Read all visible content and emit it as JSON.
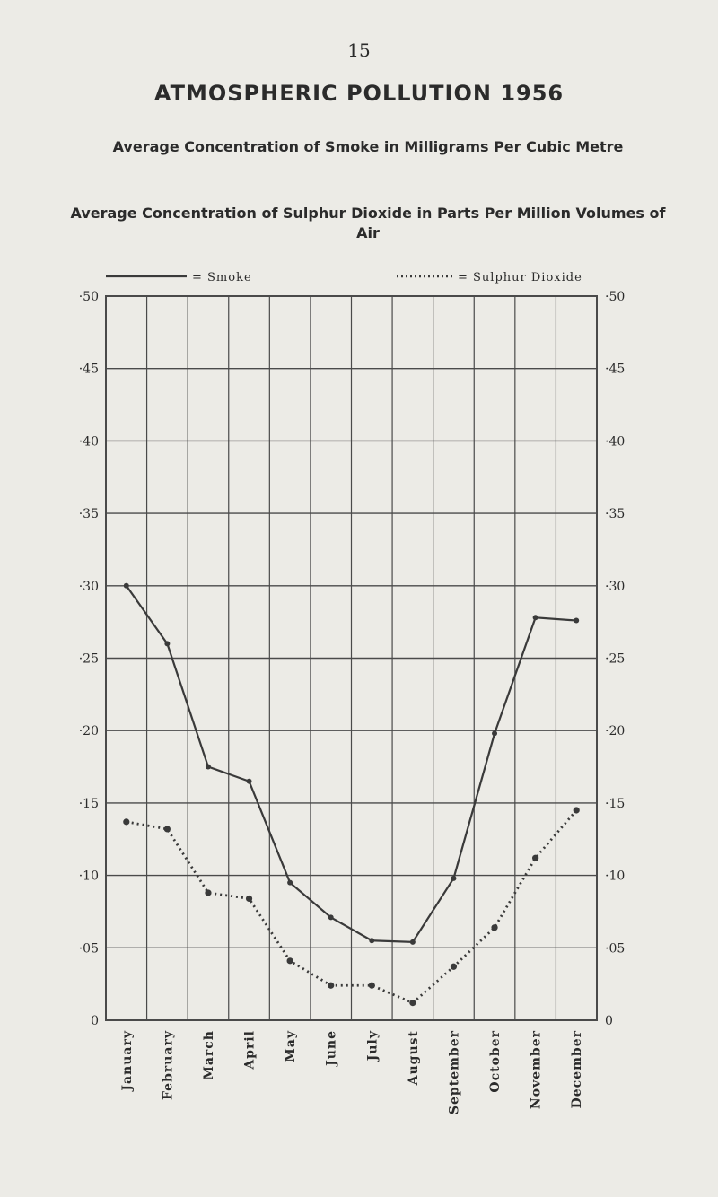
{
  "page": {
    "number": "15",
    "title": "ATMOSPHERIC POLLUTION 1956",
    "subtitle_smoke": "Average Concentration of Smoke in Milligrams Per Cubic Metre",
    "subtitle_so2": "Average Concentration of Sulphur Dioxide in Parts Per Million Volumes of Air"
  },
  "colors": {
    "line": "#3a3a3a",
    "grid": "#4a4a4a",
    "background": "#ecebe6"
  },
  "chart_data": {
    "type": "line",
    "categories": [
      "January",
      "February",
      "March",
      "April",
      "May",
      "June",
      "July",
      "August",
      "September",
      "October",
      "November",
      "December"
    ],
    "series": [
      {
        "name": "Smoke",
        "legend_label": "= Smoke",
        "style": "solid",
        "values": [
          0.3,
          0.26,
          0.175,
          0.165,
          0.095,
          0.071,
          0.055,
          0.054,
          0.098,
          0.198,
          0.278,
          0.276
        ]
      },
      {
        "name": "Sulphur Dioxide",
        "legend_label": "= Sulphur Dioxide",
        "style": "dotted",
        "values": [
          0.137,
          0.132,
          0.088,
          0.084,
          0.041,
          0.024,
          0.024,
          0.012,
          0.037,
          0.064,
          0.112,
          0.145
        ]
      }
    ],
    "y_ticks": [
      "·50",
      "·45",
      "·40",
      "·35",
      "·30",
      "·25",
      "·20",
      "·15",
      "·10",
      "·05",
      "0"
    ],
    "ylim": [
      0,
      0.5
    ],
    "grid": true,
    "legend_position": "top"
  }
}
